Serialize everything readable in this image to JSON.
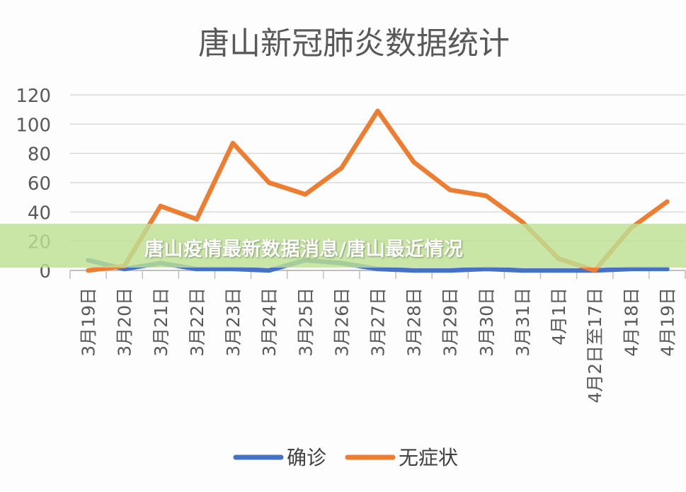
{
  "banner": {
    "text": "唐山疫情最新数据消息/唐山最近情况"
  },
  "chart_data": {
    "type": "line",
    "title": "唐山新冠肺炎数据统计",
    "categories": [
      "3月19日",
      "3月20日",
      "3月21日",
      "3月22日",
      "3月23日",
      "3月24日",
      "3月25日",
      "3月26日",
      "3月27日",
      "3月28日",
      "3月29日",
      "3月30日",
      "3月31日",
      "4月1日",
      "4月2日至17日",
      "4月18日",
      "4月19日"
    ],
    "series": [
      {
        "name": "确诊",
        "color": "#4472c4",
        "values": [
          7,
          1,
          5,
          1,
          1,
          0,
          7,
          5,
          1,
          0,
          0,
          1,
          0,
          0,
          0,
          1,
          1
        ]
      },
      {
        "name": "无症状",
        "color": "#ed7d31",
        "values": [
          0,
          3,
          44,
          35,
          87,
          60,
          52,
          70,
          109,
          74,
          55,
          51,
          33,
          8,
          0,
          29,
          47
        ]
      }
    ],
    "ylim": [
      0,
      120
    ],
    "yticks": [
      "0",
      "20",
      "40",
      "60",
      "80",
      "100",
      "120"
    ],
    "grid": true,
    "legend": "bottom"
  }
}
